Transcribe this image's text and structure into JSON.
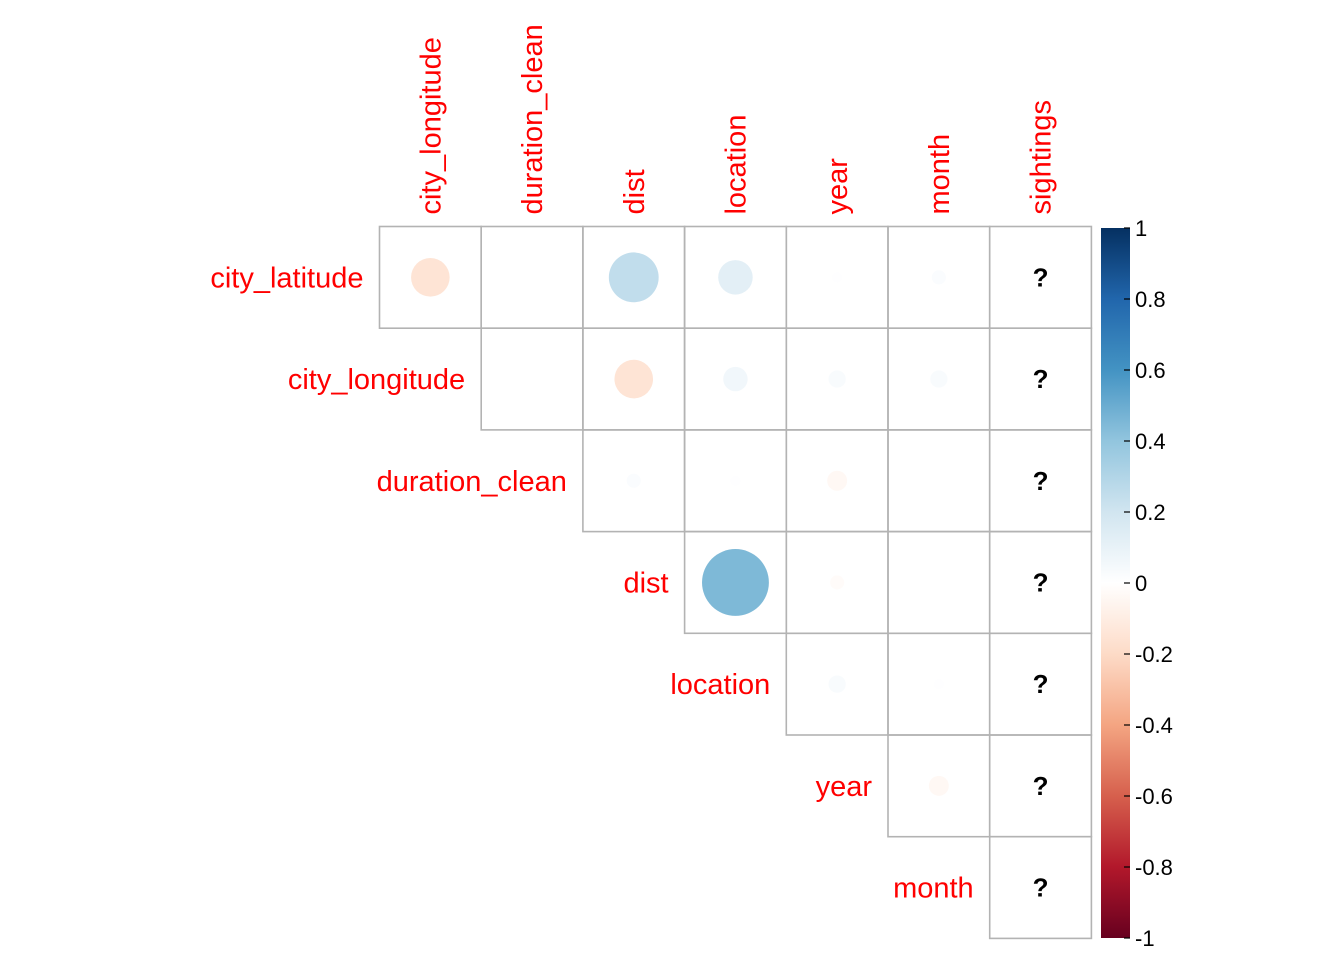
{
  "chart_data": {
    "type": "heatmap",
    "style": "corrplot-circle-upper",
    "row_labels": [
      "city_latitude",
      "city_longitude",
      "duration_clean",
      "dist",
      "location",
      "year",
      "month"
    ],
    "col_labels": [
      "city_longitude",
      "duration_clean",
      "dist",
      "location",
      "year",
      "month",
      "sightings"
    ],
    "matrix": [
      [
        -0.15,
        0.0,
        0.25,
        0.12,
        0.005,
        0.02,
        null
      ],
      [
        null,
        0.0,
        -0.15,
        0.06,
        0.03,
        0.03,
        null
      ],
      [
        null,
        null,
        0.02,
        0.005,
        -0.04,
        0.0,
        null
      ],
      [
        null,
        null,
        null,
        0.45,
        -0.02,
        0.0,
        null
      ],
      [
        null,
        null,
        null,
        null,
        0.03,
        0.005,
        null
      ],
      [
        null,
        null,
        null,
        null,
        null,
        -0.04,
        null
      ],
      [
        null,
        null,
        null,
        null,
        null,
        null,
        null
      ]
    ],
    "na_symbol": "?",
    "colorbar": {
      "range": [
        -1,
        1
      ],
      "ticks": [
        "1",
        "0.8",
        "0.6",
        "0.4",
        "0.2",
        "0",
        "-0.2",
        "-0.4",
        "-0.6",
        "-0.8",
        "-1"
      ],
      "colors": [
        "#67001F",
        "#B2182B",
        "#D6604D",
        "#F4A582",
        "#FDDBC7",
        "#FFFFFF",
        "#D1E5F0",
        "#92C5DE",
        "#4393C3",
        "#2166AC",
        "#053061"
      ]
    },
    "label_color": "#ff0000",
    "grid_color": "#b3b3b3"
  }
}
